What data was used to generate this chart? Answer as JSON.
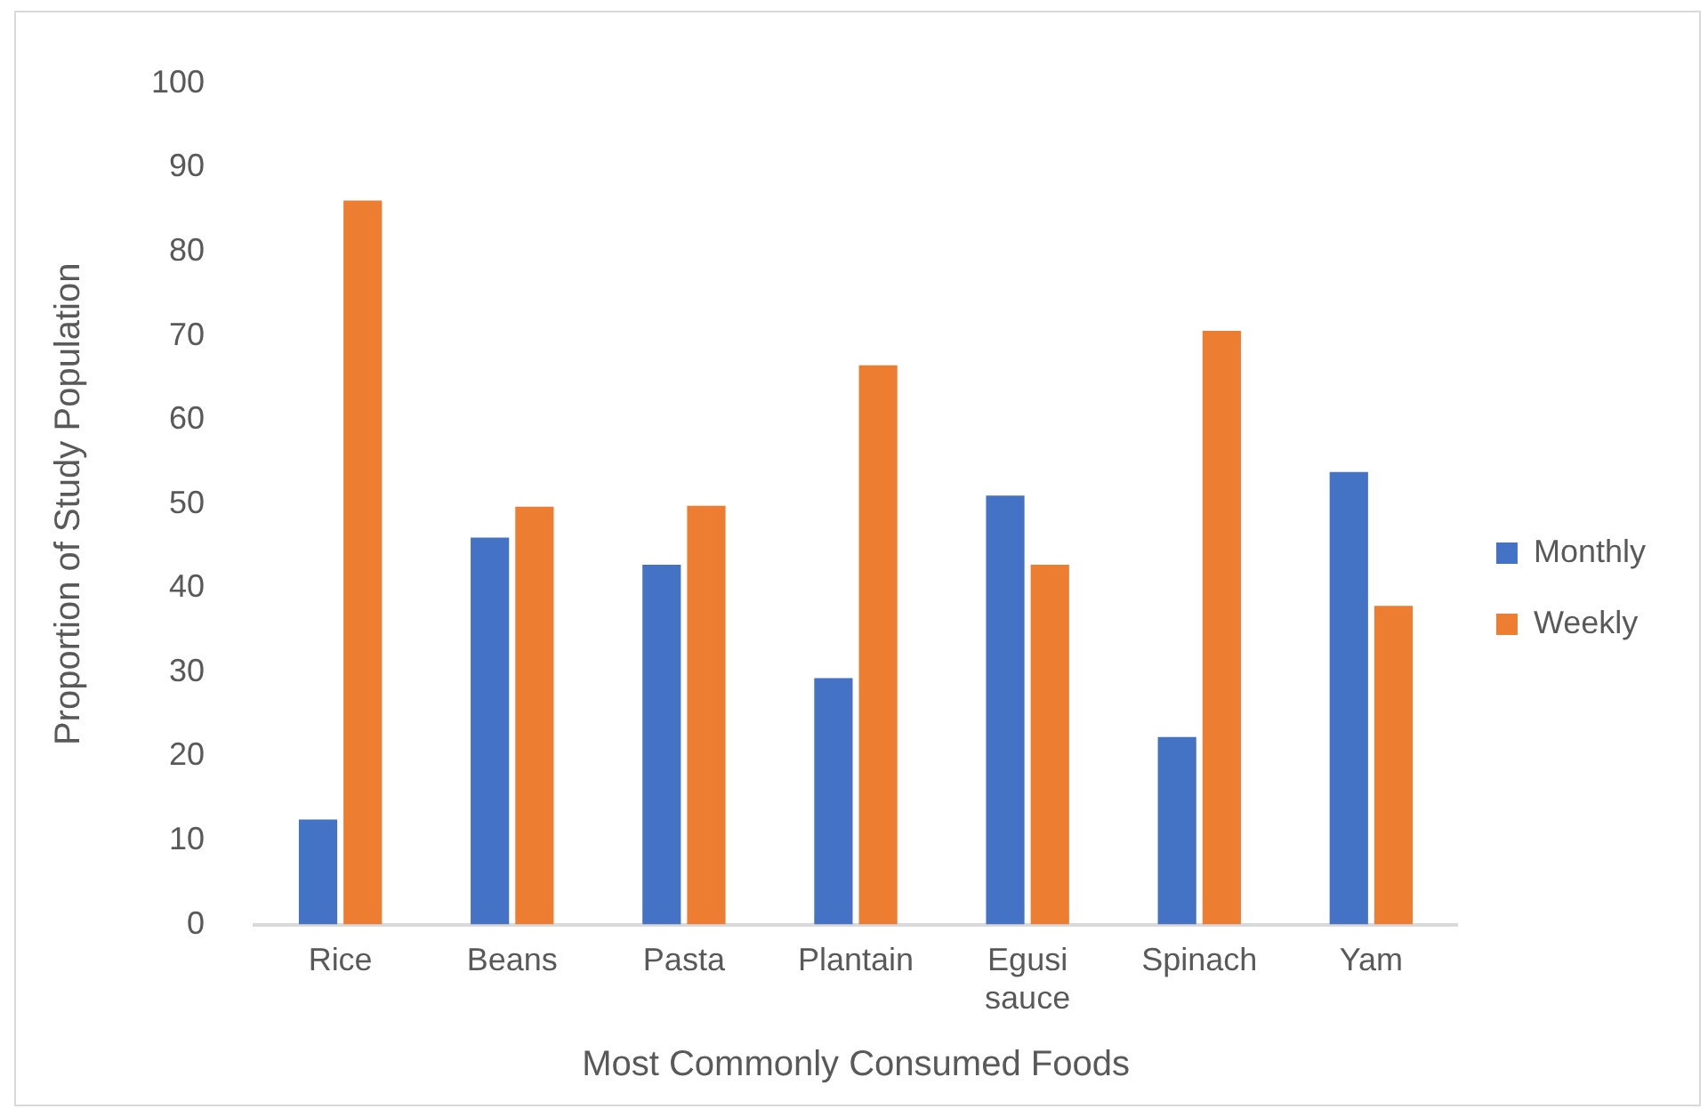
{
  "chart_data": {
    "type": "bar",
    "xlabel": "Most Commonly Consumed Foods",
    "ylabel": "Proportion of Study Population",
    "categories": [
      "Rice",
      "Beans",
      "Pasta",
      "Plantain",
      "Egusi sauce",
      "Spinach",
      "Yam"
    ],
    "series": [
      {
        "name": "Monthly",
        "color": "#4472c4",
        "values": [
          12.5,
          46,
          42.8,
          29.3,
          51,
          22.3,
          53.8
        ]
      },
      {
        "name": "Weekly",
        "color": "#ed7d31",
        "values": [
          86.1,
          49.7,
          49.8,
          66.5,
          42.8,
          70.6,
          37.9
        ]
      }
    ],
    "ylim": [
      0,
      100
    ],
    "yticks": [
      0,
      10,
      20,
      30,
      40,
      50,
      60,
      70,
      80,
      90,
      100
    ],
    "grid": false,
    "legend": "right"
  }
}
